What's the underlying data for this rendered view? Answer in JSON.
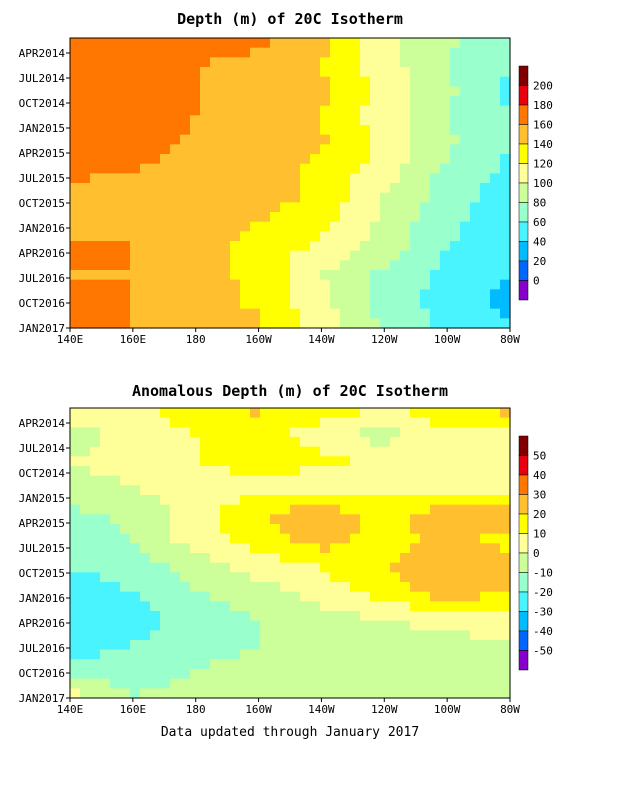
{
  "chart_data": [
    {
      "type": "heatmap",
      "title": "Depth (m) of 20C Isotherm",
      "x_ticks": [
        "140E",
        "160E",
        "180",
        "160W",
        "140W",
        "120W",
        "100W",
        "80W"
      ],
      "y_ticks": [
        "APR2014",
        "JUL2014",
        "OCT2014",
        "JAN2015",
        "APR2015",
        "JUL2015",
        "OCT2015",
        "JAN2016",
        "APR2016",
        "JUL2016",
        "OCT2016",
        "JAN2017"
      ],
      "legend_levels": [
        200,
        180,
        160,
        140,
        120,
        100,
        80,
        60,
        40,
        20,
        0
      ],
      "legend_colors": [
        "#800000",
        "#e8000e",
        "#ff7700",
        "#ffbf2f",
        "#ffff00",
        "#ffff99",
        "#ccff99",
        "#99ffcc",
        "#4af4ff",
        "#00bbff",
        "#0066ff",
        "#8800cc"
      ],
      "x": [
        140,
        160,
        180,
        200,
        220,
        240,
        260,
        280
      ],
      "y": [
        "APR2014",
        "JUL2014",
        "OCT2014",
        "JAN2015",
        "APR2015",
        "JUL2015",
        "OCT2015",
        "JAN2016",
        "APR2016",
        "JUL2016",
        "OCT2016",
        "JAN2017"
      ],
      "z": [
        [
          182,
          172,
          175,
          165,
          145,
          105,
          85,
          65
        ],
        [
          165,
          165,
          160,
          155,
          140,
          110,
          80,
          60
        ],
        [
          170,
          168,
          160,
          155,
          145,
          110,
          85,
          55
        ],
        [
          168,
          170,
          160,
          150,
          140,
          110,
          80,
          60
        ],
        [
          165,
          165,
          158,
          152,
          142,
          115,
          85,
          60
        ],
        [
          162,
          160,
          158,
          150,
          135,
          110,
          75,
          55
        ],
        [
          158,
          155,
          160,
          150,
          135,
          100,
          70,
          50
        ],
        [
          150,
          158,
          150,
          140,
          125,
          95,
          65,
          45
        ],
        [
          165,
          160,
          155,
          130,
          115,
          90,
          60,
          45
        ],
        [
          158,
          160,
          148,
          135,
          100,
          75,
          55,
          40
        ],
        [
          180,
          160,
          150,
          135,
          105,
          75,
          50,
          35
        ],
        [
          175,
          160,
          155,
          145,
          110,
          75,
          55,
          40
        ]
      ]
    },
    {
      "type": "heatmap",
      "title": "Anomalous Depth (m) of 20C Isotherm",
      "x_ticks": [
        "140E",
        "160E",
        "180",
        "160W",
        "140W",
        "120W",
        "100W",
        "80W"
      ],
      "y_ticks": [
        "APR2014",
        "JUL2014",
        "OCT2014",
        "JAN2015",
        "APR2015",
        "JUL2015",
        "OCT2015",
        "JAN2016",
        "APR2016",
        "JUL2016",
        "OCT2016",
        "JAN2017"
      ],
      "legend_levels": [
        50,
        40,
        30,
        20,
        10,
        0,
        -10,
        -20,
        -30,
        -40,
        -50
      ],
      "legend_colors": [
        "#800000",
        "#e8000e",
        "#ff7700",
        "#ffbf2f",
        "#ffff00",
        "#ffff99",
        "#ccff99",
        "#99ffcc",
        "#4af4ff",
        "#00bbff",
        "#0066ff",
        "#8800cc"
      ],
      "x": [
        140,
        160,
        180,
        200,
        220,
        240,
        260,
        280
      ],
      "y": [
        "APR2014",
        "JUL2014",
        "OCT2014",
        "JAN2015",
        "APR2015",
        "JUL2015",
        "OCT2015",
        "JAN2016",
        "APR2016",
        "JUL2016",
        "OCT2016",
        "JAN2017"
      ],
      "z": [
        [
          5,
          8,
          15,
          22,
          15,
          10,
          15,
          25
        ],
        [
          -5,
          5,
          10,
          15,
          5,
          -5,
          10,
          5
        ],
        [
          0,
          5,
          10,
          15,
          12,
          8,
          5,
          0
        ],
        [
          -5,
          0,
          5,
          5,
          5,
          5,
          5,
          0
        ],
        [
          -12,
          -8,
          5,
          20,
          25,
          18,
          25,
          30
        ],
        [
          -15,
          -10,
          5,
          15,
          25,
          15,
          25,
          15
        ],
        [
          -20,
          -15,
          -5,
          5,
          10,
          20,
          28,
          25
        ],
        [
          -25,
          -20,
          -10,
          -5,
          5,
          15,
          25,
          20
        ],
        [
          -30,
          -25,
          -15,
          -10,
          -5,
          0,
          5,
          5
        ],
        [
          -25,
          -20,
          -15,
          -10,
          -5,
          -5,
          -5,
          0
        ],
        [
          -15,
          -15,
          -10,
          -5,
          -5,
          -10,
          -5,
          0
        ],
        [
          5,
          -10,
          -5,
          -5,
          -5,
          -10,
          -5,
          -5
        ]
      ]
    }
  ],
  "footer": "Data updated through January 2017"
}
